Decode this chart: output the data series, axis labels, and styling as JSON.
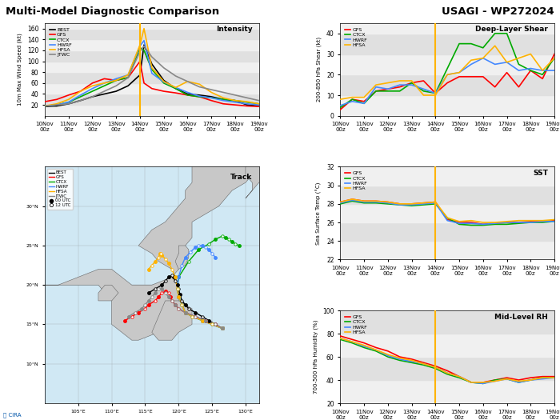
{
  "title_left": "Multi-Model Diagnostic Comparison",
  "title_right": "USAGI - WP272024",
  "vline_x": 4.0,
  "intensity": {
    "times": [
      0,
      0.5,
      1,
      1.5,
      2,
      2.5,
      3,
      3.5,
      4,
      4.17,
      4.5,
      5,
      5.5,
      6,
      6.5,
      7,
      7.5,
      8,
      8.5,
      9
    ],
    "BEST": [
      17,
      18,
      22,
      28,
      35,
      40,
      45,
      55,
      75,
      130,
      95,
      65,
      50,
      40,
      38,
      35,
      30,
      28,
      20,
      18
    ],
    "GFS": [
      26,
      30,
      38,
      45,
      60,
      68,
      65,
      70,
      100,
      60,
      50,
      45,
      42,
      38,
      35,
      28,
      22,
      20,
      18,
      17
    ],
    "CTCX": [
      18,
      20,
      25,
      35,
      45,
      55,
      65,
      70,
      125,
      120,
      85,
      60,
      50,
      38,
      35,
      33,
      30,
      28,
      25,
      22
    ],
    "HWRF": [
      18,
      20,
      25,
      38,
      50,
      60,
      68,
      75,
      128,
      138,
      78,
      62,
      52,
      43,
      36,
      33,
      28,
      25,
      22,
      20
    ],
    "HFSA": [
      18,
      22,
      30,
      45,
      55,
      60,
      65,
      75,
      130,
      160,
      88,
      63,
      52,
      63,
      58,
      43,
      33,
      28,
      26,
      22
    ],
    "JTWC": [
      18,
      20,
      22,
      28,
      35,
      45,
      55,
      70,
      118,
      128,
      108,
      88,
      73,
      63,
      53,
      48,
      43,
      38,
      33,
      28
    ],
    "ylabel": "10m Max Wind Speed (kt)",
    "label": "Intensity",
    "ylim": [
      0,
      170
    ],
    "yticks": [
      20,
      40,
      60,
      80,
      100,
      120,
      140,
      160
    ]
  },
  "shear": {
    "times": [
      0,
      0.5,
      1,
      1.5,
      2,
      2.5,
      3,
      3.5,
      4,
      4.5,
      5,
      5.5,
      6,
      6.5,
      7,
      7.5,
      8,
      8.5,
      9
    ],
    "GFS": [
      3,
      8,
      7,
      12,
      13,
      14,
      16,
      17,
      11,
      16,
      19,
      19,
      19,
      14,
      21,
      14,
      22,
      18,
      30
    ],
    "CTCX": [
      4,
      8,
      6,
      12,
      12,
      12,
      16,
      12,
      11,
      23,
      35,
      35,
      33,
      40,
      40,
      25,
      22,
      20,
      28
    ],
    "HWRF": [
      5,
      7,
      6,
      14,
      13,
      15,
      15,
      13,
      11,
      20,
      21,
      25,
      28,
      25,
      26,
      22,
      23,
      22,
      22
    ],
    "HFSA": [
      8,
      9,
      9,
      15,
      16,
      17,
      17,
      10,
      10,
      20,
      21,
      27,
      28,
      34,
      26,
      28,
      30,
      22,
      28
    ],
    "ylabel": "200-850 hPa Shear (kt)",
    "label": "Deep-Layer Shear",
    "ylim": [
      0,
      45
    ],
    "yticks": [
      0,
      10,
      20,
      30,
      40
    ]
  },
  "sst": {
    "times": [
      0,
      0.5,
      1,
      1.5,
      2,
      2.5,
      3,
      3.5,
      4,
      4.5,
      5,
      5.5,
      6,
      6.5,
      7,
      7.5,
      8,
      8.5,
      9
    ],
    "GFS": [
      28.2,
      28.5,
      28.3,
      28.3,
      28.2,
      28.0,
      28.0,
      28.1,
      28.2,
      26.3,
      26.0,
      26.0,
      25.8,
      25.9,
      26.0,
      26.0,
      26.1,
      26.1,
      26.2
    ],
    "CTCX": [
      28.0,
      28.3,
      28.1,
      28.1,
      28.0,
      27.9,
      27.8,
      27.9,
      28.0,
      26.5,
      25.8,
      25.7,
      25.7,
      25.8,
      25.8,
      25.9,
      26.0,
      26.0,
      26.1
    ],
    "HWRF": [
      28.1,
      28.4,
      28.2,
      28.2,
      28.1,
      27.9,
      27.9,
      28.0,
      28.1,
      26.2,
      25.9,
      25.9,
      25.8,
      25.9,
      26.0,
      26.0,
      26.0,
      26.1,
      26.1
    ],
    "HFSA": [
      28.2,
      28.5,
      28.3,
      28.3,
      28.2,
      28.0,
      28.0,
      28.1,
      28.2,
      26.5,
      26.1,
      26.2,
      26.0,
      26.0,
      26.1,
      26.2,
      26.2,
      26.2,
      26.3
    ],
    "ylabel": "Sea Surface Temp (°C)",
    "label": "SST",
    "ylim": [
      22,
      32
    ],
    "yticks": [
      22,
      24,
      26,
      28,
      30,
      32
    ]
  },
  "rh": {
    "times": [
      0,
      0.5,
      1,
      1.5,
      2,
      2.5,
      3,
      3.5,
      4,
      4.5,
      5,
      5.5,
      6,
      6.5,
      7,
      7.5,
      8,
      8.5,
      9
    ],
    "GFS": [
      78,
      75,
      72,
      68,
      65,
      60,
      58,
      55,
      52,
      48,
      43,
      38,
      38,
      40,
      42,
      40,
      42,
      43,
      43
    ],
    "CTCX": [
      75,
      72,
      68,
      65,
      60,
      57,
      55,
      53,
      50,
      45,
      42,
      38,
      37,
      40,
      41,
      38,
      40,
      42,
      42
    ],
    "HWRF": [
      76,
      73,
      69,
      66,
      61,
      58,
      56,
      54,
      51,
      46,
      43,
      38,
      37,
      39,
      41,
      38,
      40,
      41,
      42
    ],
    "HFSA": [
      76,
      73,
      70,
      66,
      62,
      59,
      57,
      54,
      51,
      46,
      43,
      38,
      38,
      39,
      41,
      39,
      40,
      42,
      42
    ],
    "ylabel": "700-500 hPa Humidity (%)",
    "label": "Mid-Level RH",
    "ylim": [
      20,
      100
    ],
    "yticks": [
      20,
      40,
      60,
      80,
      100
    ]
  },
  "colors": {
    "BEST": "#000000",
    "GFS": "#FF0000",
    "CTCX": "#00AA00",
    "HWRF": "#4488FF",
    "HFSA": "#FFB300",
    "JTWC": "#888888"
  },
  "xtick_labels": [
    "10Nov\n00z",
    "11Nov\n00z",
    "12Nov\n00z",
    "13Nov\n00z",
    "14Nov\n00z",
    "15Nov\n00z",
    "16Nov\n00z",
    "17Nov\n00z",
    "18Nov\n00z",
    "19Nov\n00z"
  ],
  "xtick_positions": [
    0,
    1,
    2,
    3,
    4,
    5,
    6,
    7,
    8,
    9
  ],
  "vline_color": "#FFB300",
  "map_lon_range": [
    100,
    132
  ],
  "map_lat_range": [
    5,
    35
  ],
  "map_lon_ticks": [
    105,
    110,
    115,
    120,
    125,
    130
  ],
  "map_lat_ticks": [
    10,
    15,
    20,
    25,
    30
  ],
  "track_BEST_lons": [
    126.5,
    125.5,
    124.5,
    123.5,
    122.5,
    121.5,
    121.0,
    120.5,
    120.2,
    120.0,
    119.8,
    119.5,
    119.2,
    119.0,
    118.5,
    118.0,
    117.5,
    116.5,
    115.5
  ],
  "track_BEST_lats": [
    14.5,
    15.0,
    15.5,
    16.0,
    16.5,
    17.0,
    17.5,
    18.0,
    18.8,
    19.5,
    20.0,
    20.5,
    21.0,
    21.2,
    21.0,
    20.5,
    20.0,
    19.5,
    19.0
  ],
  "track_GFS_lons": [
    126.5,
    125.5,
    124.0,
    122.5,
    121.0,
    120.0,
    119.5,
    119.0,
    118.8,
    118.5,
    118.0,
    117.5,
    117.0,
    116.5,
    115.5,
    115.0,
    114.0,
    113.0,
    112.0
  ],
  "track_GFS_lats": [
    14.5,
    15.0,
    15.5,
    16.0,
    16.5,
    17.0,
    17.5,
    18.0,
    18.5,
    19.0,
    19.2,
    19.0,
    18.5,
    18.0,
    17.5,
    17.0,
    16.5,
    16.0,
    15.5
  ],
  "track_CTCX_lons": [
    126.5,
    125.0,
    123.5,
    122.0,
    121.0,
    120.5,
    120.0,
    119.8,
    120.0,
    121.5,
    123.0,
    124.5,
    125.5,
    126.5,
    127.0,
    127.5,
    128.0,
    128.5,
    129.0
  ],
  "track_CTCX_lats": [
    14.5,
    15.0,
    15.5,
    16.0,
    16.5,
    17.5,
    18.5,
    19.5,
    21.0,
    23.0,
    24.5,
    25.2,
    25.8,
    26.2,
    26.0,
    25.8,
    25.5,
    25.2,
    25.0
  ],
  "track_HWRF_lons": [
    126.5,
    125.0,
    123.5,
    122.0,
    121.0,
    120.5,
    120.0,
    119.8,
    120.0,
    120.5,
    121.0,
    121.8,
    122.5,
    123.0,
    123.5,
    124.0,
    124.5,
    125.0,
    125.5
  ],
  "track_HWRF_lats": [
    14.5,
    15.0,
    15.5,
    16.0,
    16.5,
    17.5,
    18.5,
    19.5,
    21.0,
    22.5,
    23.5,
    24.2,
    24.8,
    25.0,
    25.0,
    24.8,
    24.5,
    24.0,
    23.5
  ],
  "track_HFSA_lons": [
    126.5,
    125.0,
    123.5,
    122.0,
    121.0,
    120.5,
    120.0,
    119.8,
    119.5,
    119.0,
    118.5,
    118.0,
    117.5,
    117.3,
    117.2,
    117.0,
    116.5,
    116.0,
    115.5
  ],
  "track_HFSA_lats": [
    14.5,
    15.0,
    15.5,
    16.0,
    16.5,
    17.5,
    18.5,
    19.5,
    21.0,
    22.0,
    22.8,
    23.3,
    23.8,
    24.0,
    24.0,
    23.5,
    23.0,
    22.5,
    22.0
  ],
  "track_JTWC_lons": [
    126.5,
    125.5,
    124.0,
    122.5,
    121.0,
    120.0,
    119.5,
    119.0,
    118.5,
    118.0,
    117.5,
    117.0,
    116.5,
    116.0,
    115.5,
    115.0,
    114.5,
    113.5,
    112.5
  ],
  "track_JTWC_lats": [
    14.5,
    15.0,
    15.5,
    16.0,
    16.5,
    17.0,
    17.5,
    18.0,
    18.5,
    19.0,
    19.5,
    19.5,
    19.0,
    18.5,
    18.0,
    17.5,
    17.0,
    16.5,
    16.0
  ],
  "land_color": "#c8c8c8",
  "ocean_color": "#d0e8f4",
  "bg_color": "#cccccc"
}
